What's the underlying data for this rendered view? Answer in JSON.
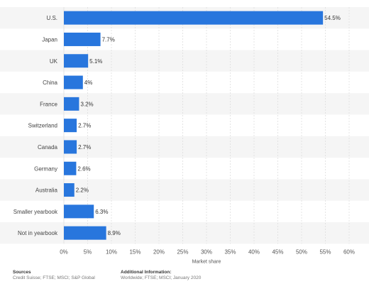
{
  "chart_data": {
    "type": "bar",
    "orientation": "horizontal",
    "categories": [
      "U.S.",
      "Japan",
      "UK",
      "China",
      "France",
      "Switzerland",
      "Canada",
      "Germany",
      "Australia",
      "Smaller yearbook",
      "Not in yearbook"
    ],
    "values": [
      54.5,
      7.7,
      5.1,
      4,
      3.2,
      2.7,
      2.7,
      2.6,
      2.2,
      6.3,
      8.9
    ],
    "value_labels": [
      "54.5%",
      "7.7%",
      "5.1%",
      "4%",
      "3.2%",
      "2.7%",
      "2.7%",
      "2.6%",
      "2.2%",
      "6.3%",
      "8.9%"
    ],
    "xlabel": "Market share",
    "ylabel": "",
    "xlim": [
      0,
      60
    ],
    "ticks": [
      0,
      5,
      10,
      15,
      20,
      25,
      30,
      35,
      40,
      45,
      50,
      55,
      60
    ],
    "tick_labels": [
      "0%",
      "5%",
      "10%",
      "15%",
      "20%",
      "25%",
      "30%",
      "35%",
      "40%",
      "45%",
      "50%",
      "55%",
      "60%"
    ],
    "grid": true,
    "bar_color": "#2876dd"
  },
  "footer": {
    "sources_title": "Sources",
    "sources_text": "Credit Suisse; FTSE; MSCI; S&P Global",
    "additional_title": "Additional Information:",
    "additional_text": "Worldwide; FTSE; MSCI; January 2020"
  }
}
